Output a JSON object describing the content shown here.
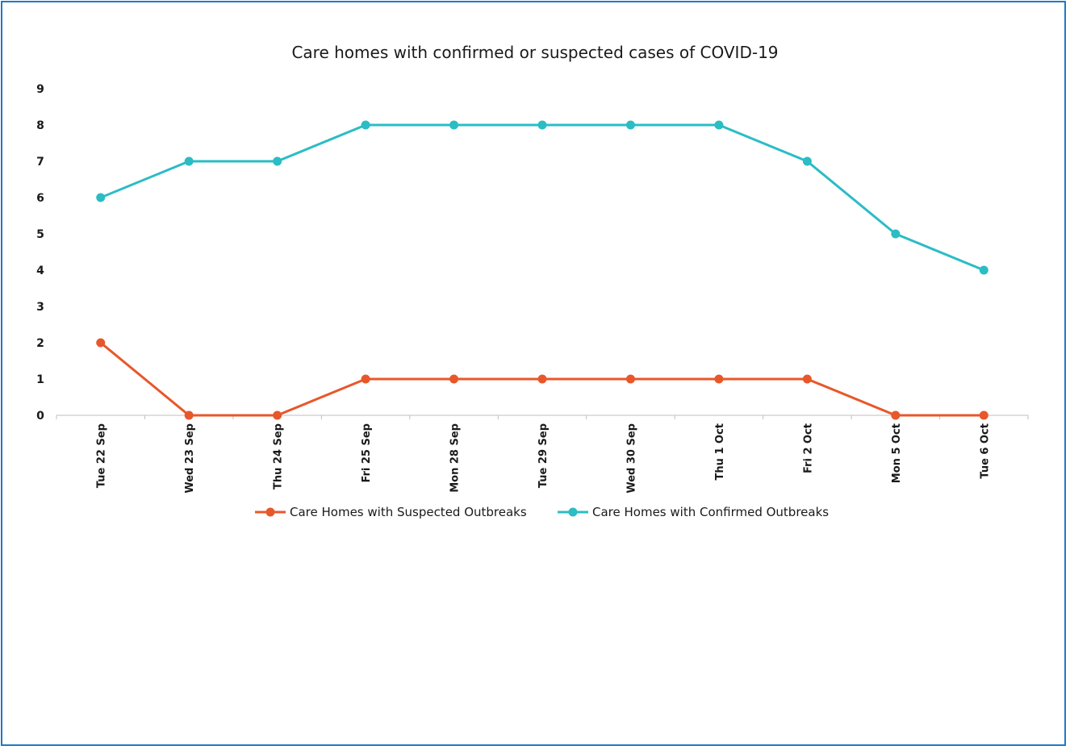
{
  "chart_data": {
    "type": "line",
    "title": "Care homes with confirmed or suspected cases of COVID-19",
    "xlabel": "",
    "ylabel": "",
    "categories": [
      "Tue 22 Sep",
      "Wed 23 Sep",
      "Thu 24 Sep",
      "Fri 25 Sep",
      "Mon 28 Sep",
      "Tue 29 Sep",
      "Wed 30 Sep",
      "Thu 1 Oct",
      "Fri 2 Oct",
      "Mon 5 Oct",
      "Tue 6 Oct"
    ],
    "ylim": [
      0,
      9
    ],
    "yticks": [
      "0",
      "1",
      "2",
      "3",
      "4",
      "5",
      "6",
      "7",
      "8",
      "9"
    ],
    "grid": false,
    "legend_position": "bottom",
    "series": [
      {
        "name": "Care Homes with Suspected Outbreaks",
        "color": "#e8572a",
        "values": [
          2,
          0,
          0,
          1,
          1,
          1,
          1,
          1,
          1,
          0,
          0
        ]
      },
      {
        "name": "Care Homes with Confirmed Outbreaks",
        "color": "#2bbcc4",
        "values": [
          6,
          7,
          7,
          8,
          8,
          8,
          8,
          8,
          7,
          5,
          4
        ]
      }
    ]
  },
  "colors": {
    "frame_border": "#1f78c8",
    "axis": "#bfbfbf"
  }
}
